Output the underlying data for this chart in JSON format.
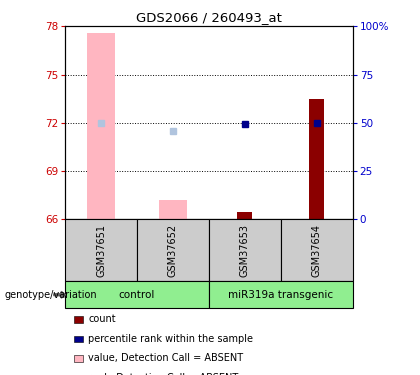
{
  "title": "GDS2066 / 260493_at",
  "samples": [
    "GSM37651",
    "GSM37652",
    "GSM37653",
    "GSM37654"
  ],
  "ylim": [
    66,
    78
  ],
  "ylim_right": [
    0,
    100
  ],
  "yticks_left": [
    66,
    69,
    72,
    75,
    78
  ],
  "yticks_right": [
    0,
    25,
    50,
    75,
    100
  ],
  "ytick_right_labels": [
    "0",
    "25",
    "50",
    "75",
    "100%"
  ],
  "left_color": "#CC0000",
  "right_color": "#0000CC",
  "absent_value_color": "#FFB6C1",
  "absent_rank_color": "#B0C4DE",
  "count_color": "#8B0000",
  "rank_color": "#00008B",
  "data": {
    "GSM37651": {
      "absent_value": 77.6,
      "absent_rank": 72.0,
      "count": null,
      "rank": null,
      "is_absent": true
    },
    "GSM37652": {
      "absent_value": 67.2,
      "absent_rank": 71.5,
      "count": null,
      "rank": null,
      "is_absent": true
    },
    "GSM37653": {
      "absent_value": null,
      "absent_rank": null,
      "count": 66.45,
      "rank": 71.9,
      "is_absent": false
    },
    "GSM37654": {
      "absent_value": null,
      "absent_rank": null,
      "count": 73.5,
      "rank": 72.0,
      "is_absent": false
    }
  },
  "legend_items": [
    {
      "label": "count",
      "color": "#8B0000"
    },
    {
      "label": "percentile rank within the sample",
      "color": "#00008B"
    },
    {
      "label": "value, Detection Call = ABSENT",
      "color": "#FFB6C1"
    },
    {
      "label": "rank, Detection Call = ABSENT",
      "color": "#B0C4DE"
    }
  ],
  "groups": [
    {
      "label": "control",
      "start": 0,
      "end": 2,
      "color": "#90EE90"
    },
    {
      "label": "miR319a transgenic",
      "start": 2,
      "end": 4,
      "color": "#90EE90"
    }
  ],
  "sample_bg_color": "#CCCCCC"
}
